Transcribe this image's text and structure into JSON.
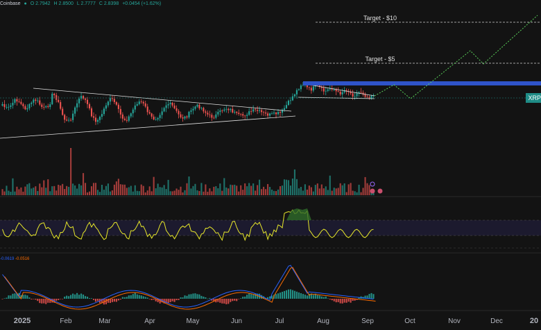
{
  "header": {
    "exchange": "Coinbase",
    "open": "O 2.7942",
    "high": "H 2.8500",
    "low": "L 2.7777",
    "close": "C 2.8398",
    "change": "+0.0454 (+1.62%)"
  },
  "targets": [
    {
      "label": "Target - $10"
    },
    {
      "label": "Target - $5"
    }
  ],
  "symbol_tag": "XRP",
  "macd_legend": {
    "v1": "-0.0619",
    "v2": "-0.0516"
  },
  "colors": {
    "background": "#131313",
    "up": "#26a69a",
    "down": "#ef5350",
    "resistance": "#2f54c9",
    "rsi_line": "#e8e82a",
    "macd_line": "#2962ff",
    "signal_line": "#ff6d00",
    "projection": "#5ad25a",
    "tag": "#1f8c86"
  },
  "chart_data": [
    {
      "type": "candlestick",
      "x_axis_labels": [
        "2025",
        "Feb",
        "Mar",
        "Apr",
        "May",
        "Jun",
        "Jul",
        "Aug",
        "Sep",
        "Oct",
        "Nov",
        "Dec",
        "20"
      ],
      "last_close": 2.8398,
      "target_levels": [
        10,
        5
      ],
      "pattern": "symmetrical triangle, breakout in July, flag consolidation in August",
      "projection": "dotted zig-zag path rising toward the $10 target",
      "volume": "bars shown below price pane"
    },
    {
      "type": "line",
      "name": "RSI",
      "bands": "upper and lower dashed bands with shaded zone",
      "peak_month": "Jul"
    },
    {
      "type": "bar",
      "name": "MACD",
      "lines": [
        "-0.0619",
        "-0.0516"
      ],
      "histogram": "green/red bars around zero"
    }
  ]
}
